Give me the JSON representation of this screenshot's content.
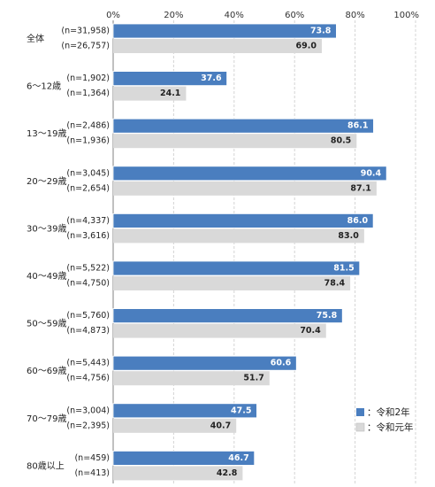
{
  "chart_data": {
    "type": "bar",
    "orientation": "horizontal",
    "xlim": [
      0,
      100
    ],
    "x_ticks": [
      "0%",
      "20%",
      "40%",
      "60%",
      "80%",
      "100%"
    ],
    "x_tick_values": [
      0,
      20,
      40,
      60,
      80,
      100
    ],
    "legend_position": "bottom-right",
    "categories": [
      "全体",
      "6～12歳",
      "13～19歳",
      "20～29歳",
      "30～39歳",
      "40～49歳",
      "50～59歳",
      "60～69歳",
      "70～79歳",
      "80歳以上"
    ],
    "series": [
      {
        "name": "：令和2年",
        "color": "#4a7ebf",
        "values": [
          73.8,
          37.6,
          86.1,
          90.4,
          86.0,
          81.5,
          75.8,
          60.6,
          47.5,
          46.7
        ],
        "value_labels": [
          "73.8",
          "37.6",
          "86.1",
          "90.4",
          "86.0",
          "81.5",
          "75.8",
          "60.6",
          "47.5",
          "46.7"
        ],
        "n_labels": [
          "(n=31,958)",
          "(n=1,902)",
          "(n=2,486)",
          "(n=3,045)",
          "(n=4,337)",
          "(n=5,522)",
          "(n=5,760)",
          "(n=5,443)",
          "(n=3,004)",
          "(n=459)"
        ]
      },
      {
        "name": "：令和元年",
        "color": "#d9d9d9",
        "values": [
          69.0,
          24.1,
          80.5,
          87.1,
          83.0,
          78.4,
          70.4,
          51.7,
          40.7,
          42.8
        ],
        "value_labels": [
          "69.0",
          "24.1",
          "80.5",
          "87.1",
          "83.0",
          "78.4",
          "70.4",
          "51.7",
          "40.7",
          "42.8"
        ],
        "n_labels": [
          "(n=26,757)",
          "(n=1,364)",
          "(n=1,936)",
          "(n=2,654)",
          "(n=3,616)",
          "(n=4,750)",
          "(n=4,873)",
          "(n=4,756)",
          "(n=2,395)",
          "(n=413)"
        ]
      }
    ]
  }
}
